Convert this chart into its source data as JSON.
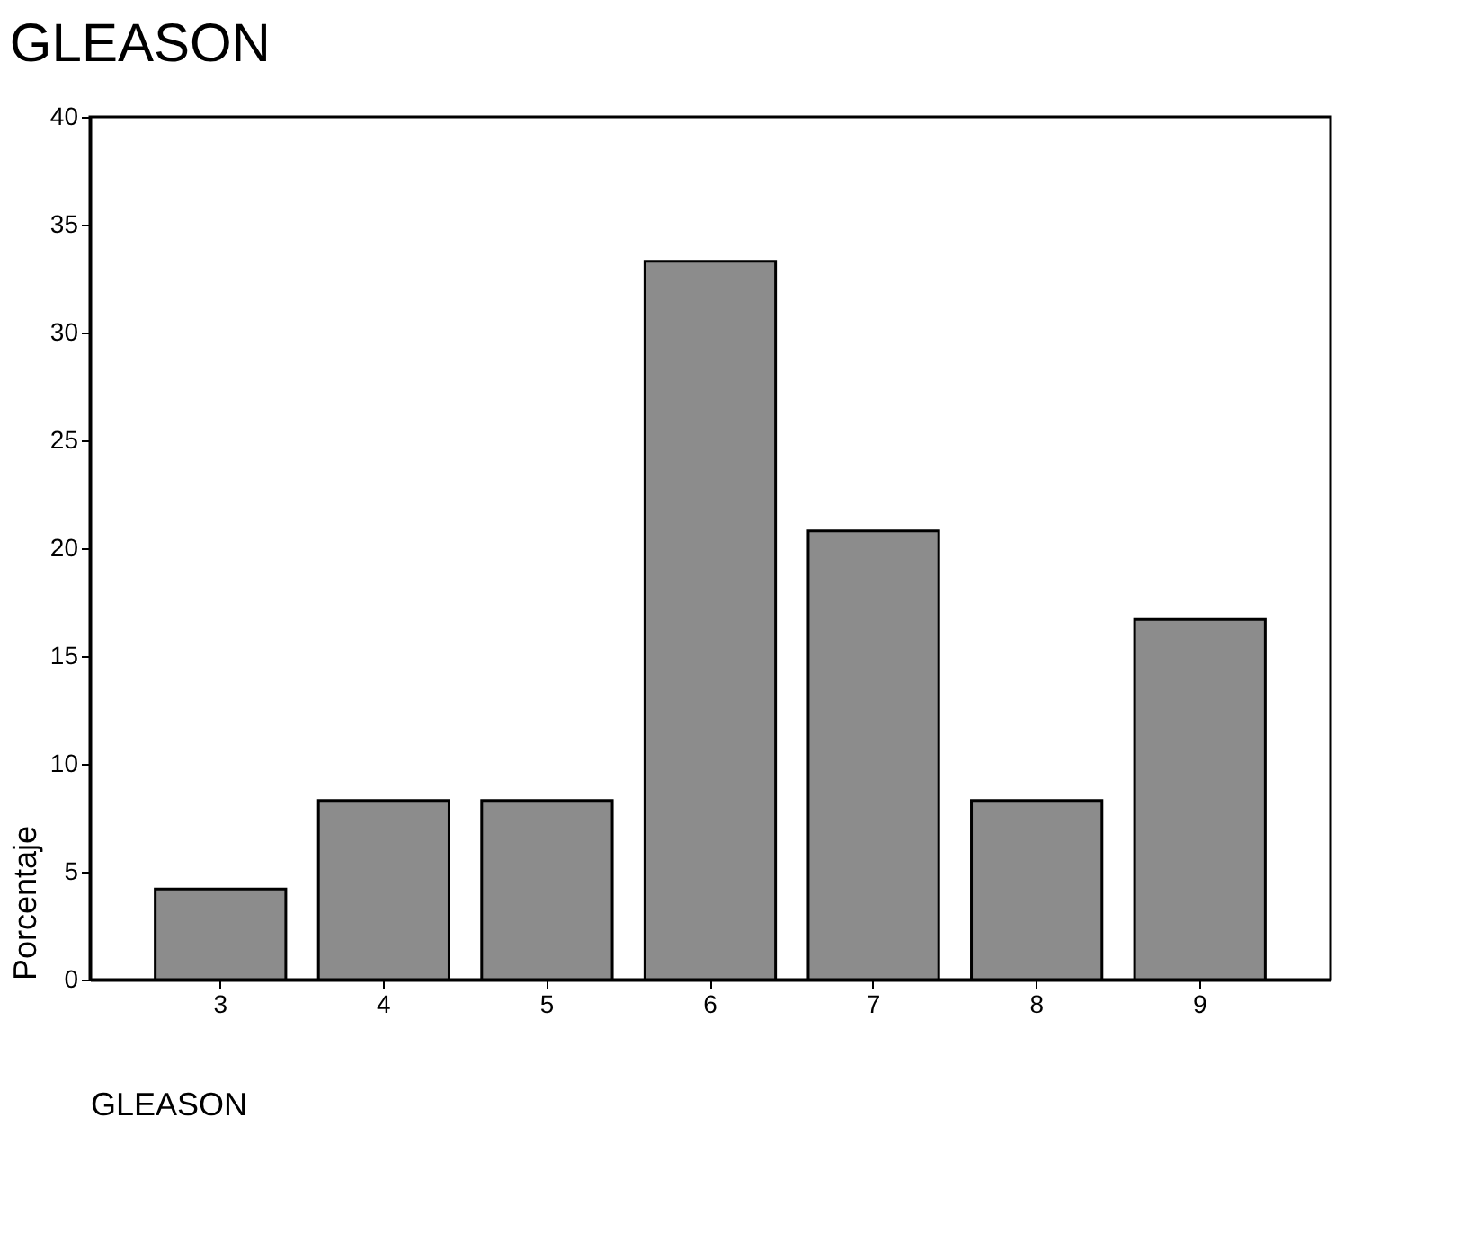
{
  "chart_data": {
    "type": "bar",
    "title": "GLEASON",
    "xlabel": "GLEASON",
    "ylabel": "Porcentaje",
    "categories": [
      "3",
      "4",
      "5",
      "6",
      "7",
      "8",
      "9"
    ],
    "values": [
      4.2,
      8.3,
      8.3,
      33.3,
      20.8,
      8.3,
      16.7
    ],
    "color": "#8c8c8c",
    "ylim": [
      0,
      40
    ],
    "yticks": [
      0,
      5,
      10,
      15,
      20,
      25,
      30,
      35,
      40
    ],
    "grid": false
  }
}
